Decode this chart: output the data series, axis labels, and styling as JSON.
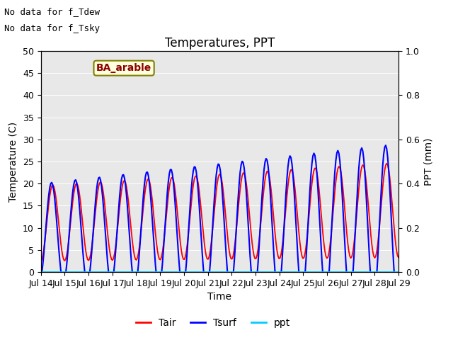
{
  "title": "Temperatures, PPT",
  "xlabel": "Time",
  "ylabel_left": "Temperature (C)",
  "ylabel_right": "PPT (mm)",
  "ylim_left": [
    0,
    50
  ],
  "ylim_right": [
    0.0,
    1.0
  ],
  "yticks_left": [
    0,
    5,
    10,
    15,
    20,
    25,
    30,
    35,
    40,
    45,
    50
  ],
  "yticks_right": [
    0.0,
    0.2,
    0.4,
    0.6,
    0.8,
    1.0
  ],
  "xtick_labels": [
    "Jul 14",
    "Jul 15",
    "Jul 16",
    "Jul 17",
    "Jul 18",
    "Jul 19",
    "Jul 20",
    "Jul 21",
    "Jul 22",
    "Jul 23",
    "Jul 24",
    "Jul 25",
    "Jul 26",
    "Jul 27",
    "Jul 28",
    "Jul 29"
  ],
  "annotation1": "No data for f_Tdew",
  "annotation2": "No data for f_Tsky",
  "label_box": "BA_arable",
  "tair_color": "#FF0000",
  "tsurf_color": "#0000FF",
  "ppt_color": "#00CCFF",
  "legend_labels": [
    "Tair",
    "Tsurf",
    "ppt"
  ],
  "background_color": "#E8E8E8",
  "fig_bg": "#FFFFFF",
  "title_fontsize": 12,
  "label_fontsize": 10,
  "tick_fontsize": 9,
  "annot_fontsize": 9,
  "legend_fontsize": 10
}
